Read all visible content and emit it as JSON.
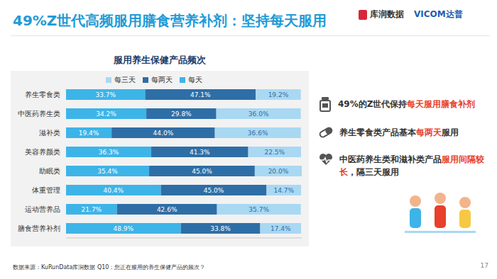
{
  "header": {
    "title": "49%Z世代高频服用膳食营养补剂：坚持每天服用",
    "logos": [
      "库润数据",
      "VICOM达普"
    ]
  },
  "chart_data": {
    "type": "bar",
    "title": "服用养生保健产品频次",
    "orientation": "horizontal",
    "stacked": true,
    "data_labels": true,
    "tick_labels": "y",
    "grid": false,
    "legend": "top",
    "xlim": [
      0,
      100.4
    ],
    "categories": [
      "养生零食类",
      "中医药养生类",
      "滋补类",
      "美容养颜类",
      "助眠类",
      "体重管理",
      "运动营养品",
      "膳食营养补剂"
    ],
    "series": [
      {
        "name": "每天",
        "color": "#3db4e8",
        "values": [
          33.7,
          34.2,
          19.4,
          36.3,
          35.4,
          40.4,
          21.7,
          48.9
        ],
        "value_labels": [
          "33.7%",
          "34.2%",
          "19.4%",
          "36.3%",
          "35.4%",
          "40.4%",
          "21.7%",
          "48.9%"
        ]
      },
      {
        "name": "每两天",
        "color": "#2e6ea6",
        "values": [
          47.1,
          29.8,
          44.0,
          41.3,
          45.0,
          45.0,
          42.6,
          33.8
        ],
        "value_labels": [
          "47.1%",
          "29.8%",
          "44.0%",
          "41.3%",
          "45.0%",
          "45.0%",
          "42.6%",
          "33.8%"
        ]
      },
      {
        "name": "每三天",
        "color": "#a9d8f3",
        "values": [
          19.2,
          36.0,
          36.6,
          22.5,
          20.0,
          14.7,
          35.7,
          17.4
        ],
        "value_labels": [
          "19.2%",
          "36.0%",
          "36.6%",
          "22.5%",
          "20.0%",
          "14.7%",
          "35.7%",
          "17.4%"
        ]
      }
    ]
  },
  "annotations": [
    {
      "text": "49%的Z世代保持每天服用膳食补剂",
      "emphasis": "每天服用膳食补剂"
    },
    {
      "text": "养生零食类产品基本每两天服用",
      "emphasis": "每两天"
    },
    {
      "text": "中医药养生类和滋补类产品服用间隔较长，隔三天服用",
      "emphasis": "服用间隔较长"
    }
  ],
  "footer": {
    "source": "数据来源：KuRunData库润数据 Q10：您正在服用的养生保健产品的频次？",
    "page": "17"
  }
}
